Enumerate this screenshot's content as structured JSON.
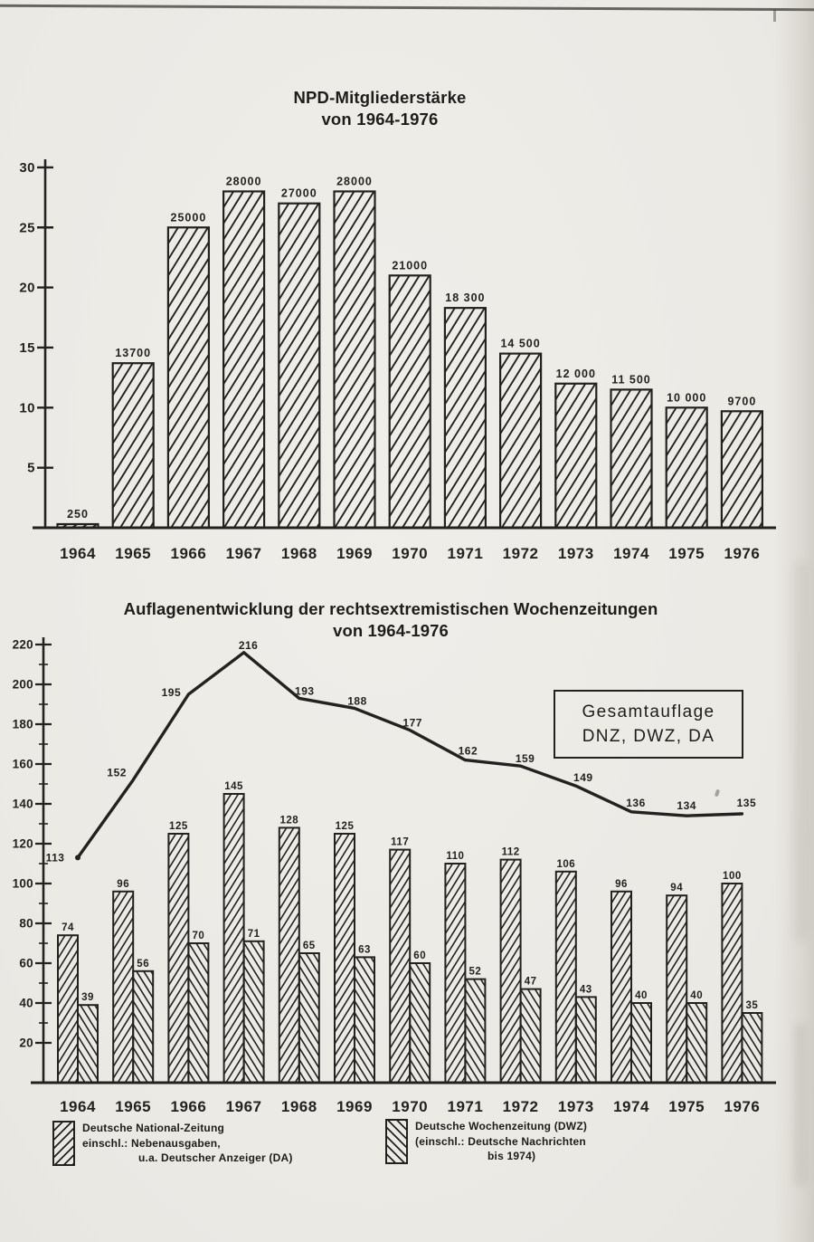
{
  "colors": {
    "paper": "#edebe6",
    "ink": "#232220"
  },
  "chart_data": [
    {
      "type": "bar",
      "title": "NPD-Mitgliederstärke",
      "subtitle": "von 1964-1976",
      "categories": [
        "1964",
        "1965",
        "1966",
        "1967",
        "1968",
        "1969",
        "1970",
        "1971",
        "1972",
        "1973",
        "1974",
        "1975",
        "1976"
      ],
      "values": [
        250,
        13700,
        25000,
        28000,
        27000,
        28000,
        21000,
        18300,
        14500,
        12000,
        11500,
        10000,
        9700
      ],
      "value_labels": [
        "250",
        "13700",
        "25000",
        "28000",
        "27000",
        "28000",
        "21000",
        "18 300",
        "14 500",
        "12 000",
        "11 500",
        "10 000",
        "9700"
      ],
      "yticks": [
        5,
        10,
        15,
        20,
        25,
        30
      ],
      "ytick_unit": 1000,
      "ylim": [
        0,
        30000
      ],
      "grid": false,
      "hatch": "forward-diagonal",
      "legend_position": "none"
    },
    {
      "type": "bar+line",
      "title": "Auflagenentwicklung der rechtsextremistischen Wochenzeitungen",
      "subtitle": "von 1964-1976",
      "categories": [
        "1964",
        "1965",
        "1966",
        "1967",
        "1968",
        "1969",
        "1970",
        "1971",
        "1972",
        "1973",
        "1974",
        "1975",
        "1976"
      ],
      "series": [
        {
          "name": "Deutsche National-Zeitung einschl.: Nebenausgaben, u.a. Deutscher Anzeiger (DA)",
          "type": "bar",
          "hatch": "forward-diagonal",
          "values": [
            74,
            96,
            125,
            145,
            128,
            125,
            117,
            110,
            112,
            106,
            96,
            94,
            100
          ]
        },
        {
          "name": "Deutsche Wochenzeitung (DWZ) (einschl.: Deutsche Nachrichten bis 1974)",
          "type": "bar",
          "hatch": "back-diagonal",
          "values": [
            39,
            56,
            70,
            71,
            65,
            63,
            60,
            52,
            47,
            43,
            40,
            40,
            35
          ]
        },
        {
          "name": "Gesamtauflage DNZ, DWZ, DA",
          "type": "line",
          "values": [
            113,
            152,
            195,
            216,
            193,
            188,
            177,
            162,
            159,
            149,
            136,
            134,
            135
          ]
        }
      ],
      "annotation": {
        "line1": "Gesamtauflage",
        "line2": "DNZ, DWZ, DA"
      },
      "yticks": [
        20,
        40,
        60,
        80,
        100,
        120,
        140,
        160,
        180,
        200,
        220
      ],
      "ylim": [
        0,
        225
      ],
      "grid": false,
      "legend_position": "bottom"
    }
  ],
  "legend": {
    "left": {
      "swatch": "forward-diagonal",
      "lines": [
        "Deutsche National-Zeitung",
        "einschl.: Nebenausgaben,",
        "u.a. Deutscher Anzeiger (DA)"
      ]
    },
    "right": {
      "swatch": "back-diagonal",
      "lines": [
        "Deutsche Wochenzeitung (DWZ)",
        "(einschl.: Deutsche Nachrichten",
        "bis 1974)"
      ]
    }
  }
}
